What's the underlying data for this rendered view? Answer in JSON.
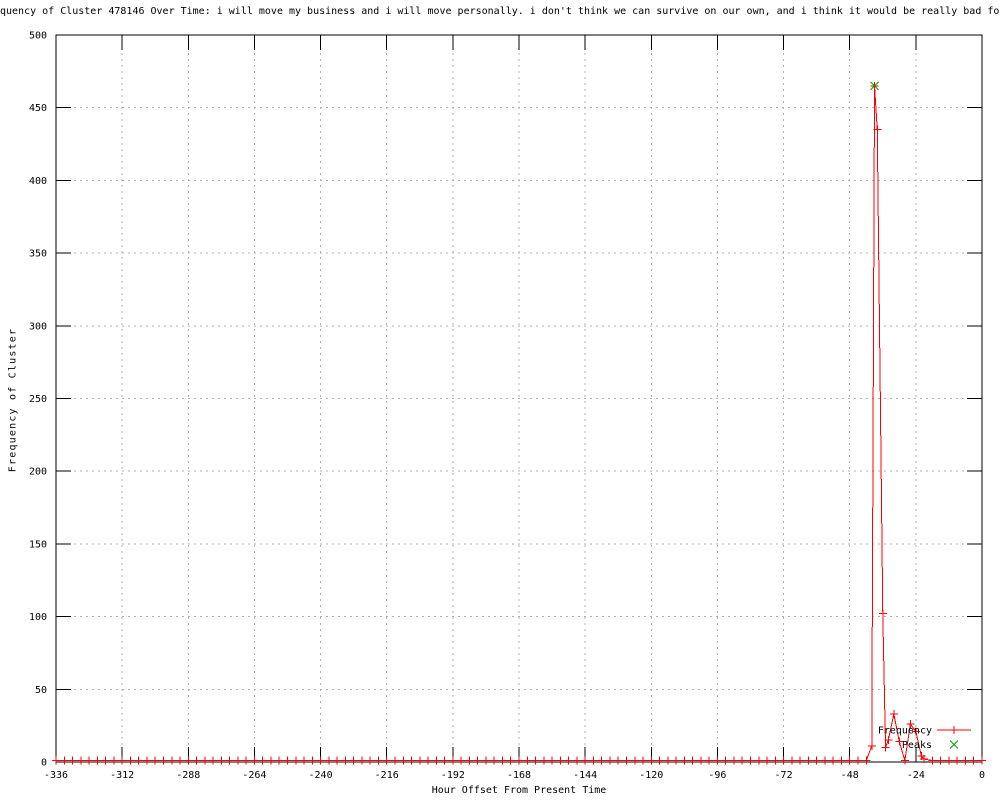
{
  "chart_data": {
    "type": "line",
    "title": "quency of Cluster 478146 Over Time: i will move my business and i will move personally. i don't think we can survive on our own, and i think it would be really bad for",
    "xlabel": "Hour Offset From Present Time",
    "ylabel": "Frequency of Cluster",
    "xlim": [
      -336,
      0
    ],
    "ylim": [
      0,
      500
    ],
    "x_ticks": [
      -336,
      -312,
      -288,
      -264,
      -240,
      -216,
      -192,
      -168,
      -144,
      -120,
      -96,
      -72,
      -48,
      -24,
      0
    ],
    "y_ticks": [
      0,
      50,
      100,
      150,
      200,
      250,
      300,
      350,
      400,
      450,
      500
    ],
    "grid": true,
    "legend_position": "bottom-right",
    "colors": {
      "axis": "#000000",
      "grid": "#b0b0b0",
      "background": "#ffffff"
    },
    "series": [
      {
        "name": "Frequency",
        "color": "#ff0000",
        "marker": "plus",
        "line": true,
        "baseline": {
          "x_from": -336,
          "x_to": -45,
          "step": 3,
          "value": 1
        },
        "points": [
          [
            -42,
            1
          ],
          [
            -40,
            11
          ],
          [
            -39,
            465
          ],
          [
            -38,
            435
          ],
          [
            -36,
            102
          ],
          [
            -35,
            10
          ],
          [
            -34,
            15
          ],
          [
            -32,
            33
          ],
          [
            -30,
            14
          ],
          [
            -28,
            1
          ],
          [
            -26,
            26
          ],
          [
            -24,
            21
          ],
          [
            -22,
            4
          ],
          [
            -21,
            2
          ],
          [
            -18,
            1
          ],
          [
            -15,
            1
          ],
          [
            -12,
            1
          ],
          [
            -9,
            1
          ],
          [
            -6,
            1
          ],
          [
            -3,
            1
          ],
          [
            0,
            1
          ]
        ]
      },
      {
        "name": "Peaks",
        "color": "#00a000",
        "marker": "x",
        "line": false,
        "points": [
          [
            -39,
            465
          ]
        ]
      }
    ]
  }
}
